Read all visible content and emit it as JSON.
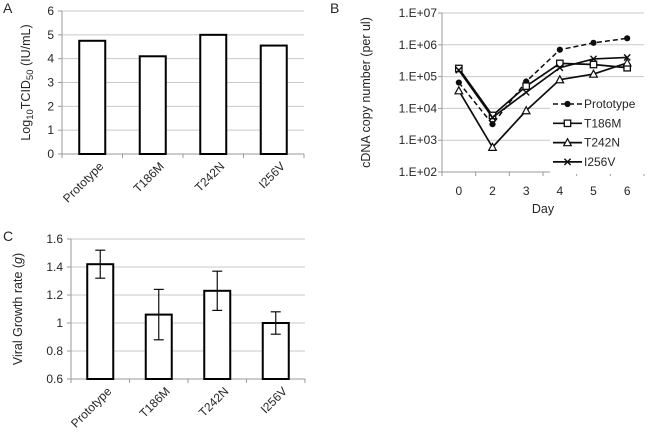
{
  "figure": {
    "panels": [
      {
        "label": "A"
      },
      {
        "label": "B"
      },
      {
        "label": "C"
      }
    ]
  },
  "colors": {
    "background": "#ffffff",
    "gridline": "#c9c9c9",
    "axis": "#9a9a9a",
    "series": "#0d0d0d",
    "bar_fill": "#ffffff",
    "bar_stroke": "#000000",
    "text": "#262626",
    "legend_background": "#ffffff"
  },
  "chart_data": [
    {
      "panel": "A",
      "type": "bar",
      "title": "",
      "ylabel": "Log10TCID50 (IU/mL)",
      "ylabel_parts": [
        {
          "t": "Log"
        },
        {
          "t": "10",
          "sub": true
        },
        {
          "t": "TCID"
        },
        {
          "t": "50",
          "sub": true
        },
        {
          "t": " (IU/mL)"
        }
      ],
      "xlabel": "",
      "categories": [
        "Prototype",
        "T186M",
        "T242N",
        "I256V"
      ],
      "values": [
        4.75,
        4.1,
        5.0,
        4.55
      ],
      "ylim": [
        0,
        6
      ],
      "yticks": [
        "0",
        "1",
        "2",
        "3",
        "4",
        "5",
        "6"
      ],
      "grid": true
    },
    {
      "panel": "B",
      "type": "line",
      "title": "",
      "ylabel": "cDNA copy number (per ul)",
      "xlabel": "Day",
      "categories": [
        "0",
        "2",
        "3",
        "4",
        "5",
        "6"
      ],
      "y_scale": "log10",
      "ylim": [
        100,
        10000000
      ],
      "yticks": [
        "1.E+02",
        "1.E+03",
        "1.E+04",
        "1.E+05",
        "1.E+06",
        "1.E+07"
      ],
      "grid": true,
      "legend_position": "inside-bottom-right",
      "series": [
        {
          "name": "Prototype",
          "line": "dashed",
          "marker": "filled-circle",
          "values": [
            65000,
            3200,
            70000,
            700000,
            1150000,
            1600000
          ]
        },
        {
          "name": "T186M",
          "line": "solid",
          "marker": "open-square",
          "values": [
            180000,
            6000,
            50000,
            260000,
            240000,
            190000
          ]
        },
        {
          "name": "T242N",
          "line": "solid",
          "marker": "open-triangle",
          "values": [
            36000,
            600,
            8500,
            80000,
            120000,
            270000
          ]
        },
        {
          "name": "I256V",
          "line": "solid",
          "marker": "x",
          "values": [
            160000,
            5200,
            32000,
            190000,
            360000,
            400000
          ]
        }
      ]
    },
    {
      "panel": "C",
      "type": "bar",
      "title": "",
      "ylabel": "Viral Growth rate (g)",
      "ylabel_parts": [
        {
          "t": "Viral Growth rate ("
        },
        {
          "t": "g",
          "italic": true
        },
        {
          "t": ")"
        }
      ],
      "xlabel": "",
      "categories": [
        "Prototype",
        "T186M",
        "T242N",
        "I256V"
      ],
      "values": [
        1.42,
        1.06,
        1.23,
        1.0
      ],
      "errors": [
        0.1,
        0.18,
        0.14,
        0.08
      ],
      "ylim": [
        0.6,
        1.6
      ],
      "yticks": [
        "0.6",
        "0.8",
        "1",
        "1.2",
        "1.4",
        "1.6"
      ],
      "grid": true
    }
  ]
}
